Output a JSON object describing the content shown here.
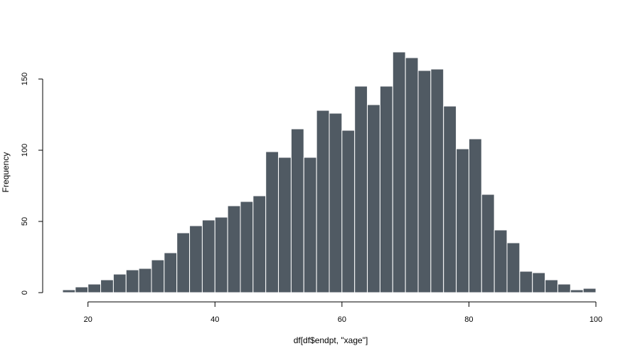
{
  "chart_data": {
    "type": "bar",
    "xlabel": "df[df$endpt, \"xage\"]",
    "ylabel": "Frequency",
    "bin_width": 2,
    "bin_start": 16,
    "values": [
      2,
      4,
      6,
      9,
      13,
      16,
      17,
      23,
      28,
      42,
      47,
      51,
      53,
      61,
      64,
      68,
      99,
      95,
      115,
      95,
      128,
      126,
      114,
      145,
      132,
      145,
      169,
      165,
      156,
      157,
      131,
      101,
      108,
      69,
      44,
      35,
      15,
      14,
      9,
      6,
      2,
      3
    ],
    "xlim": [
      16,
      100
    ],
    "ylim": [
      0,
      169
    ],
    "x_ticks": [
      "20",
      "40",
      "60",
      "80",
      "100"
    ],
    "y_ticks": [
      "0",
      "50",
      "100",
      "150"
    ],
    "bar_color": "#505A63",
    "bar_border_color": "#ffffff",
    "grid": false
  }
}
